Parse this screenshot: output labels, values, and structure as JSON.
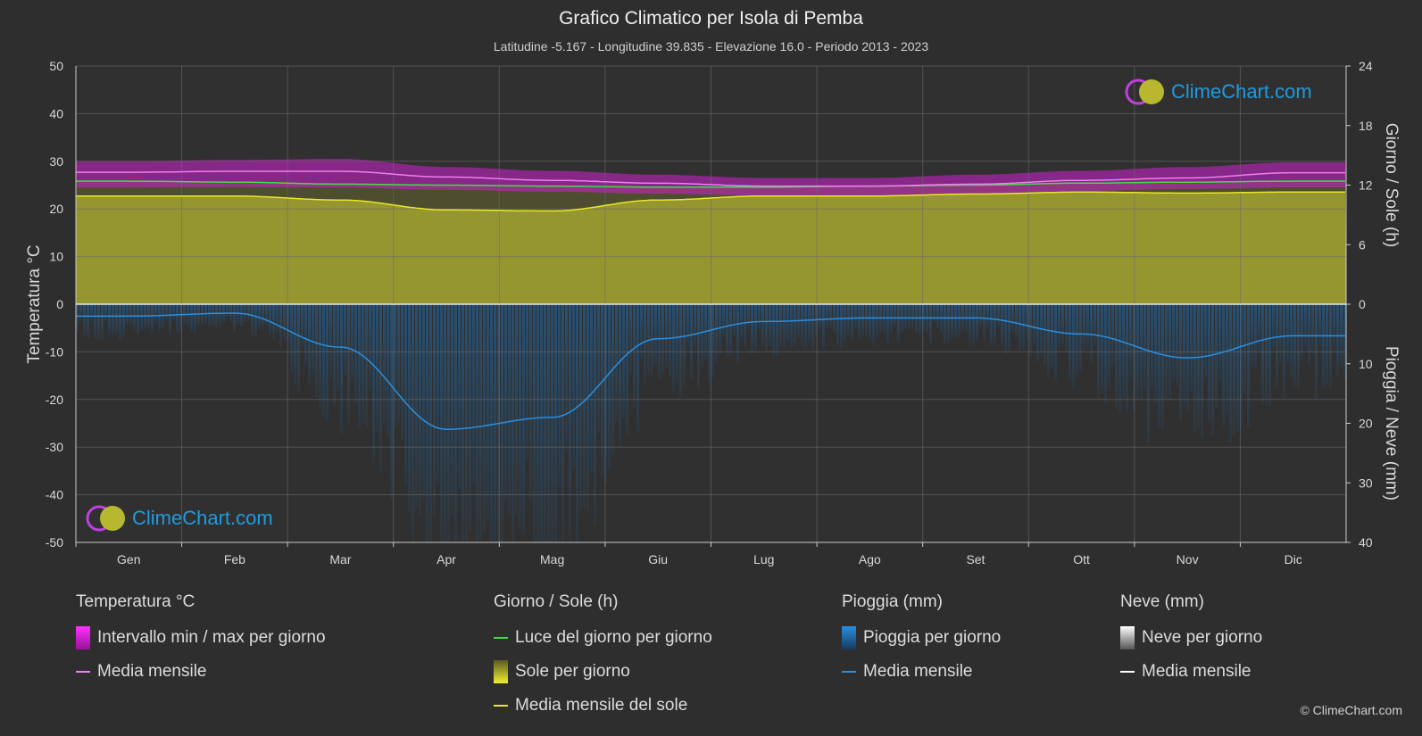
{
  "header": {
    "title": "Grafico Climatico per Isola di Pemba",
    "subtitle": "Latitudine -5.167 - Longitudine 39.835 - Elevazione 16.0 - Periodo 2013 - 2023"
  },
  "brand": {
    "logo_text": "ClimeChart.com",
    "copyright": "© ClimeChart.com"
  },
  "colors": {
    "background": "#2e2e2e",
    "temp_range": "#d020d0",
    "temp_mean": "#f07ef0",
    "daylight": "#44dd44",
    "sun_fill": "#a8a830",
    "sun_mean": "#e8e828",
    "rain": "#1e7ed0",
    "rain_mean": "#2a8fe0",
    "snow_mean": "#ffffff"
  },
  "chart_data": {
    "type": "area",
    "months": [
      "Gen",
      "Feb",
      "Mar",
      "Apr",
      "Mag",
      "Giu",
      "Lug",
      "Ago",
      "Set",
      "Ott",
      "Nov",
      "Dic"
    ],
    "left_axis": {
      "label": "Temperatura °C",
      "ylim": [
        -50,
        50
      ],
      "ticks": [
        50,
        40,
        30,
        20,
        10,
        0,
        -10,
        -20,
        -30,
        -40,
        -50
      ]
    },
    "right_axis_top": {
      "label": "Giorno / Sole (h)",
      "ylim": [
        0,
        24
      ],
      "ticks": [
        24,
        18,
        12,
        6,
        0
      ]
    },
    "right_axis_bottom": {
      "label": "Pioggia / Neve (mm)",
      "ylim": [
        0,
        40
      ],
      "ticks": [
        0,
        10,
        20,
        30,
        40
      ]
    },
    "grid": true,
    "series": [
      {
        "name": "Media mensile",
        "group": "Temperatura °C",
        "unit": "°C",
        "values": [
          27.7,
          27.9,
          27.9,
          26.7,
          26.0,
          25.4,
          24.8,
          24.8,
          25.2,
          26.0,
          26.5,
          27.6
        ]
      },
      {
        "name": "Intervallo min / max per giorno",
        "group": "Temperatura °C",
        "unit": "°C",
        "min": [
          24.5,
          24.6,
          24.5,
          24.0,
          23.6,
          23.2,
          22.8,
          22.8,
          23.2,
          23.8,
          24.2,
          24.5
        ],
        "max": [
          30.0,
          30.3,
          30.5,
          28.8,
          28.0,
          27.2,
          26.5,
          26.5,
          27.2,
          28.0,
          28.8,
          29.8
        ]
      },
      {
        "name": "Luce del giorno per giorno",
        "group": "Giorno / Sole (h)",
        "unit": "h",
        "values": [
          12.4,
          12.3,
          12.1,
          12.0,
          11.9,
          11.8,
          11.8,
          11.9,
          12.0,
          12.2,
          12.3,
          12.4
        ]
      },
      {
        "name": "Media mensile del sole",
        "group": "Giorno / Sole (h)",
        "unit": "h",
        "values": [
          10.9,
          10.9,
          10.5,
          9.5,
          9.4,
          10.5,
          10.9,
          10.9,
          11.1,
          11.3,
          11.2,
          11.3
        ]
      },
      {
        "name": "Media mensile",
        "group": "Pioggia (mm)",
        "unit": "mm",
        "values": [
          2.0,
          1.5,
          7.2,
          21.0,
          19.0,
          5.8,
          2.9,
          2.3,
          2.3,
          5.0,
          9.0,
          5.3
        ]
      },
      {
        "name": "Media mensile",
        "group": "Neve (mm)",
        "unit": "mm",
        "values": [
          0,
          0,
          0,
          0,
          0,
          0,
          0,
          0,
          0,
          0,
          0,
          0
        ]
      }
    ]
  },
  "legend": {
    "temp": {
      "title": "Temperatura °C",
      "range": "Intervallo min / max per giorno",
      "mean": "Media mensile"
    },
    "sun": {
      "title": "Giorno / Sole (h)",
      "daylight": "Luce del giorno per giorno",
      "sun": "Sole per giorno",
      "sun_mean": "Media mensile del sole"
    },
    "rain": {
      "title": "Pioggia (mm)",
      "rain": "Pioggia per giorno",
      "mean": "Media mensile"
    },
    "snow": {
      "title": "Neve (mm)",
      "snow": "Neve per giorno",
      "mean": "Media mensile"
    }
  }
}
